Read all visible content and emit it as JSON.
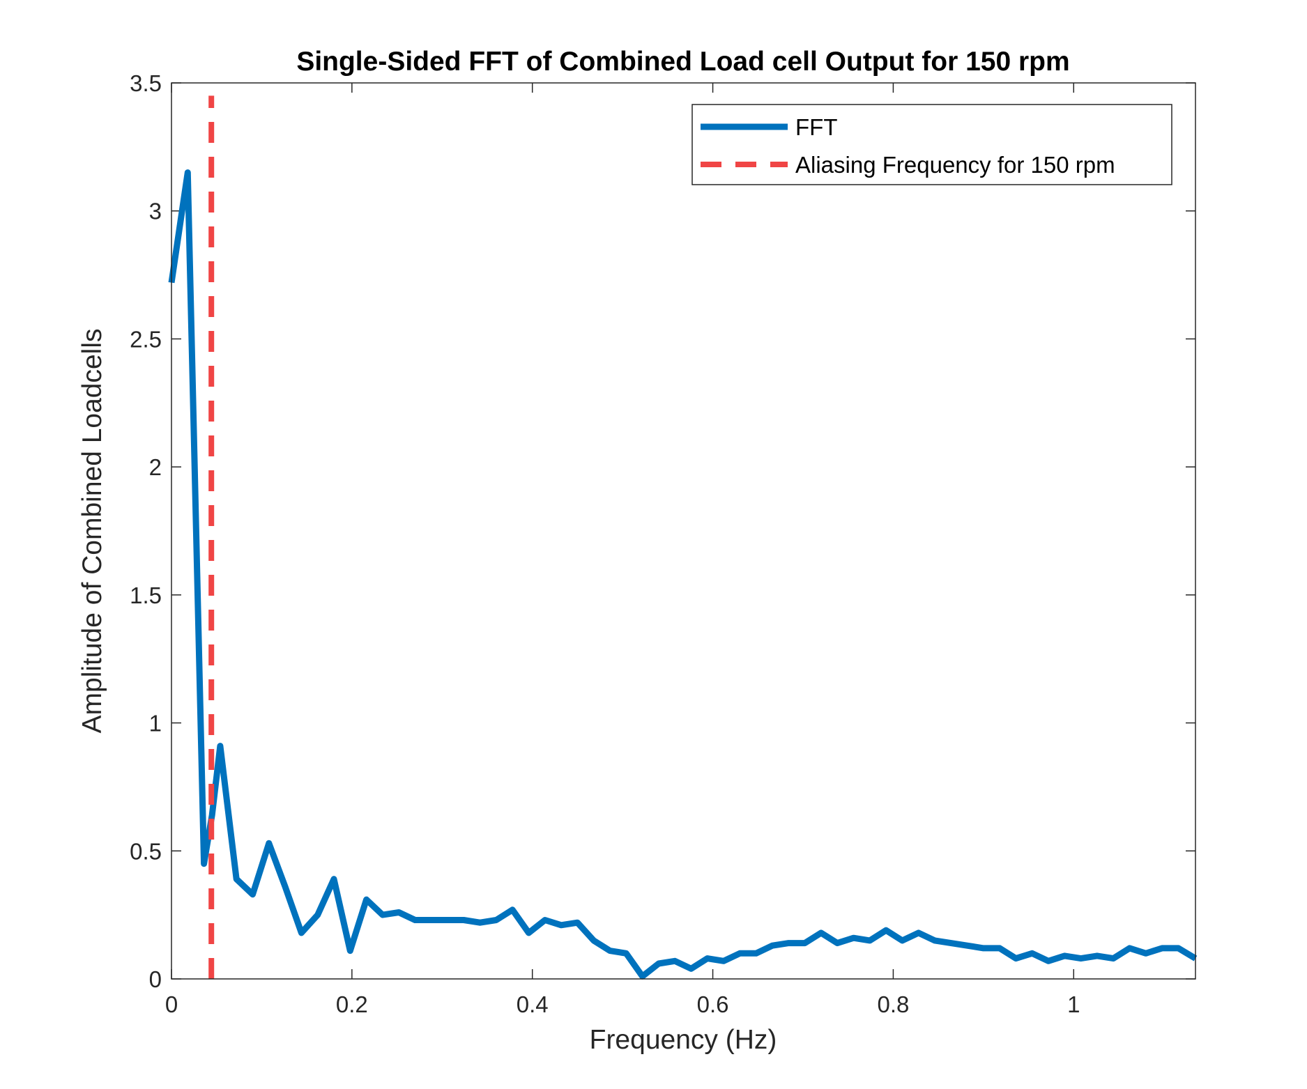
{
  "chart_data": {
    "type": "line",
    "title": "Single-Sided FFT of Combined Load cell Output for 150 rpm",
    "xlabel": "Frequency (Hz)",
    "ylabel": "Amplitude of Combined Loadcells",
    "xlim": [
      0,
      1.135
    ],
    "ylim": [
      0,
      3.5
    ],
    "x_ticks": [
      0,
      0.2,
      0.4,
      0.6,
      0.8,
      1
    ],
    "x_tick_labels": [
      "0",
      "0.2",
      "0.4",
      "0.6",
      "0.8",
      "1"
    ],
    "y_ticks": [
      0,
      0.5,
      1,
      1.5,
      2,
      2.5,
      3,
      3.5
    ],
    "y_tick_labels": [
      "0",
      "0.5",
      "1",
      "1.5",
      "2",
      "2.5",
      "3",
      "3.5"
    ],
    "grid": false,
    "legend_position": "top-right",
    "series": [
      {
        "name": "FFT",
        "style": "solid",
        "color": "#0072BD",
        "x": [
          0,
          0.018,
          0.036,
          0.045,
          0.054,
          0.072,
          0.09,
          0.108,
          0.126,
          0.144,
          0.162,
          0.18,
          0.198,
          0.216,
          0.234,
          0.252,
          0.27,
          0.288,
          0.306,
          0.324,
          0.342,
          0.36,
          0.378,
          0.396,
          0.414,
          0.432,
          0.45,
          0.468,
          0.486,
          0.504,
          0.522,
          0.54,
          0.558,
          0.576,
          0.594,
          0.612,
          0.63,
          0.648,
          0.666,
          0.684,
          0.702,
          0.72,
          0.738,
          0.756,
          0.774,
          0.792,
          0.81,
          0.828,
          0.846,
          0.864,
          0.882,
          0.9,
          0.918,
          0.936,
          0.954,
          0.972,
          0.99,
          1.008,
          1.026,
          1.044,
          1.062,
          1.08,
          1.098,
          1.116,
          1.135
        ],
        "y": [
          2.72,
          3.15,
          0.45,
          0.64,
          0.91,
          0.39,
          0.33,
          0.53,
          0.36,
          0.18,
          0.25,
          0.39,
          0.11,
          0.31,
          0.25,
          0.26,
          0.23,
          0.23,
          0.23,
          0.23,
          0.22,
          0.23,
          0.27,
          0.18,
          0.23,
          0.21,
          0.22,
          0.15,
          0.11,
          0.1,
          0.01,
          0.06,
          0.07,
          0.04,
          0.08,
          0.07,
          0.1,
          0.1,
          0.13,
          0.14,
          0.14,
          0.18,
          0.14,
          0.16,
          0.15,
          0.19,
          0.15,
          0.18,
          0.15,
          0.14,
          0.13,
          0.12,
          0.12,
          0.08,
          0.1,
          0.07,
          0.09,
          0.08,
          0.09,
          0.08,
          0.12,
          0.1,
          0.12,
          0.12,
          0.08
        ]
      },
      {
        "name": "Aliasing Frequency for 150 rpm",
        "style": "dashed",
        "color": "#F04545",
        "x": [
          0.0442,
          0.0442
        ],
        "y": [
          0,
          3.45
        ]
      }
    ]
  }
}
